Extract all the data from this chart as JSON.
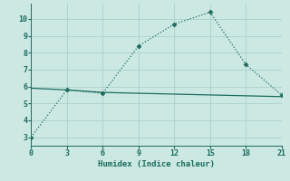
{
  "xlabel": "Humidex (Indice chaleur)",
  "line1_x": [
    0,
    3,
    6,
    9,
    12,
    15,
    18,
    21
  ],
  "line1_y": [
    3.0,
    5.8,
    5.6,
    8.4,
    9.7,
    10.4,
    7.3,
    5.5
  ],
  "line2_x": [
    0,
    3,
    6,
    9,
    12,
    15,
    18,
    21
  ],
  "line2_y": [
    5.9,
    5.8,
    5.65,
    5.6,
    5.55,
    5.5,
    5.45,
    5.4
  ],
  "line_color": "#1a6b5e",
  "bg_color": "#cce8e3",
  "grid_color": "#aed4ce",
  "xlim": [
    0,
    21
  ],
  "ylim": [
    2.5,
    10.9
  ],
  "xticks": [
    0,
    3,
    6,
    9,
    12,
    15,
    18,
    21
  ],
  "yticks": [
    3,
    4,
    5,
    6,
    7,
    8,
    9,
    10
  ],
  "markersize": 2.5,
  "linewidth": 0.9
}
